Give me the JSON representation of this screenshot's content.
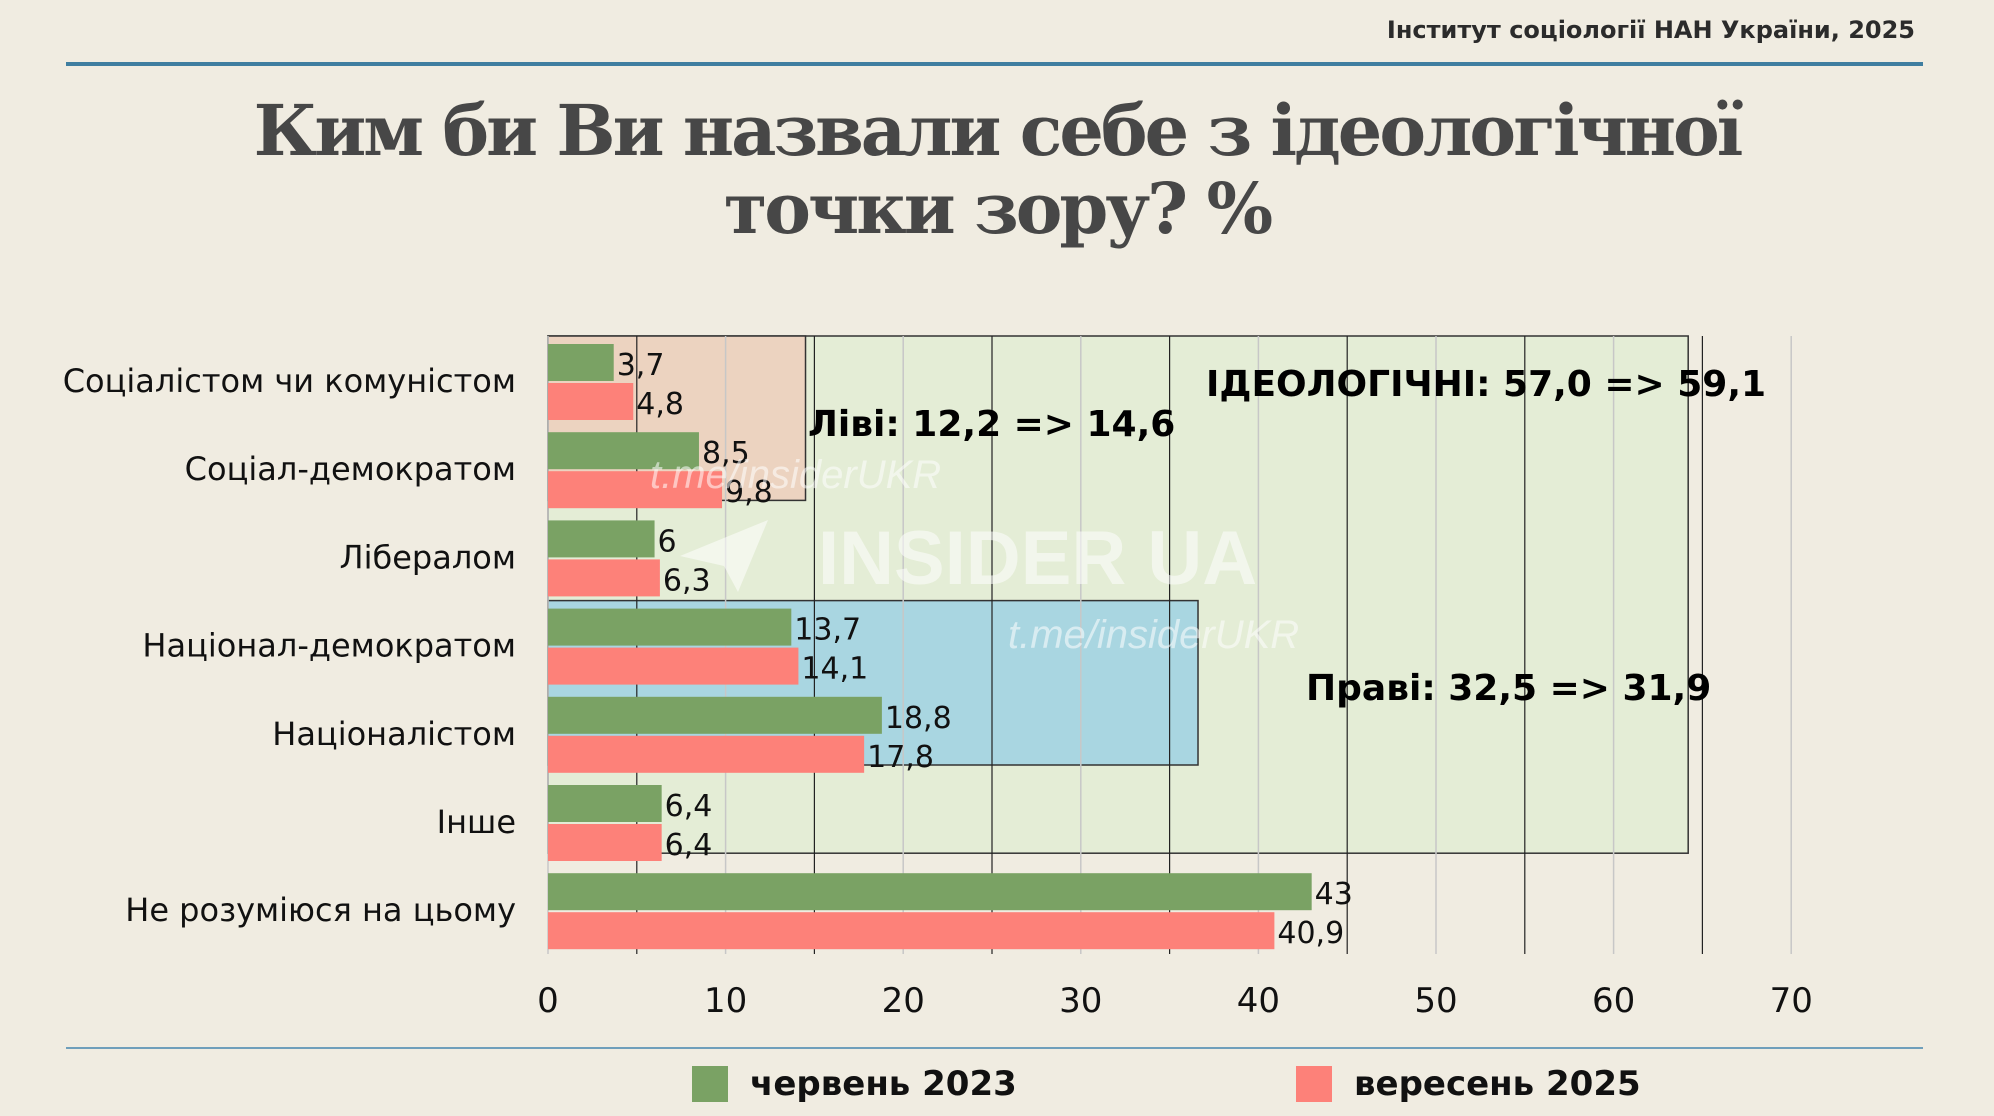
{
  "source": "Інститут соціології НАН України, 2025",
  "title_line1": "Ким би Ви назвали себе з ідеологічної",
  "title_line2": "точки зору? %",
  "watermark": {
    "link1": "t.me/insiderUKR",
    "brand": "INSIDER UA",
    "link2": "t.me/insiderUKR"
  },
  "chart_data": {
    "type": "bar",
    "orientation": "horizontal",
    "categories": [
      "Соціалістом чи комуністом",
      "Соціал-демократом",
      "Лібералом",
      "Націонал-демократом",
      "Націоналістом",
      "Інше",
      "Не розуміюся на цьому"
    ],
    "series": [
      {
        "name": "червень 2023",
        "color": "#7aa264",
        "values": [
          3.7,
          8.5,
          6,
          13.7,
          18.8,
          6.4,
          43
        ],
        "labels": [
          "3,7",
          "8,5",
          "6",
          "13,7",
          "18,8",
          "6,4",
          "43"
        ]
      },
      {
        "name": "вересень 2025",
        "color": "#fd8179",
        "values": [
          4.8,
          9.8,
          6.3,
          14.1,
          17.8,
          6.4,
          40.9
        ],
        "labels": [
          "4,8",
          "9,8",
          "6,3",
          "14,1",
          "17,8",
          "6,4",
          "40,9"
        ]
      }
    ],
    "xlim": [
      0,
      70
    ],
    "xticks": [
      "0",
      "10",
      "20",
      "30",
      "40",
      "50",
      "60",
      "70"
    ],
    "grid": true,
    "legend_position": "bottom",
    "groups": [
      {
        "label": "Ліві: 12,2 => 14,6",
        "categories": [
          "Соціалістом чи комуністом",
          "Соціал-демократом"
        ],
        "color": "#ecd3c0"
      },
      {
        "label": "Праві: 32,5 => 31,9",
        "categories": [
          "Націонал-демократом",
          "Націоналістом"
        ],
        "color": "#a9d6e1"
      },
      {
        "label": "ІДЕОЛОГІЧНІ: 57,0 => 59,1",
        "categories": [
          "Соціалістом чи комуністом",
          "Соціал-демократом",
          "Лібералом",
          "Націонал-демократом",
          "Націоналістом",
          "Інше"
        ],
        "color": "#e4edd6"
      }
    ]
  }
}
